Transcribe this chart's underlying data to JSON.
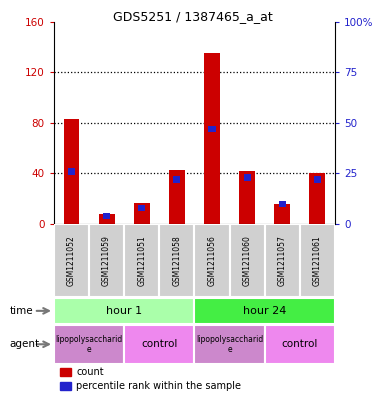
{
  "title": "GDS5251 / 1387465_a_at",
  "samples": [
    "GSM1211052",
    "GSM1211059",
    "GSM1211051",
    "GSM1211058",
    "GSM1211056",
    "GSM1211060",
    "GSM1211057",
    "GSM1211061"
  ],
  "count_values": [
    83,
    8,
    17,
    43,
    135,
    42,
    16,
    40
  ],
  "percentile_values": [
    26,
    4,
    8,
    22,
    47,
    23,
    10,
    22
  ],
  "ylim_left": [
    0,
    160
  ],
  "ylim_right": [
    0,
    100
  ],
  "yticks_left": [
    0,
    40,
    80,
    120,
    160
  ],
  "ytick_labels_left": [
    "0",
    "40",
    "80",
    "120",
    "160"
  ],
  "yticks_right": [
    0,
    25,
    50,
    75,
    100
  ],
  "ytick_labels_right": [
    "0",
    "25",
    "50",
    "75",
    "100%"
  ],
  "bar_color_red": "#cc0000",
  "bar_color_blue": "#2222cc",
  "tick_label_color_left": "#cc0000",
  "tick_label_color_right": "#2222cc",
  "legend_count_color": "#cc0000",
  "legend_pct_color": "#2222cc",
  "hour1_color": "#aaffaa",
  "hour24_color": "#44ee44",
  "lps_color": "#cc88cc",
  "ctrl_color": "#ee88ee"
}
